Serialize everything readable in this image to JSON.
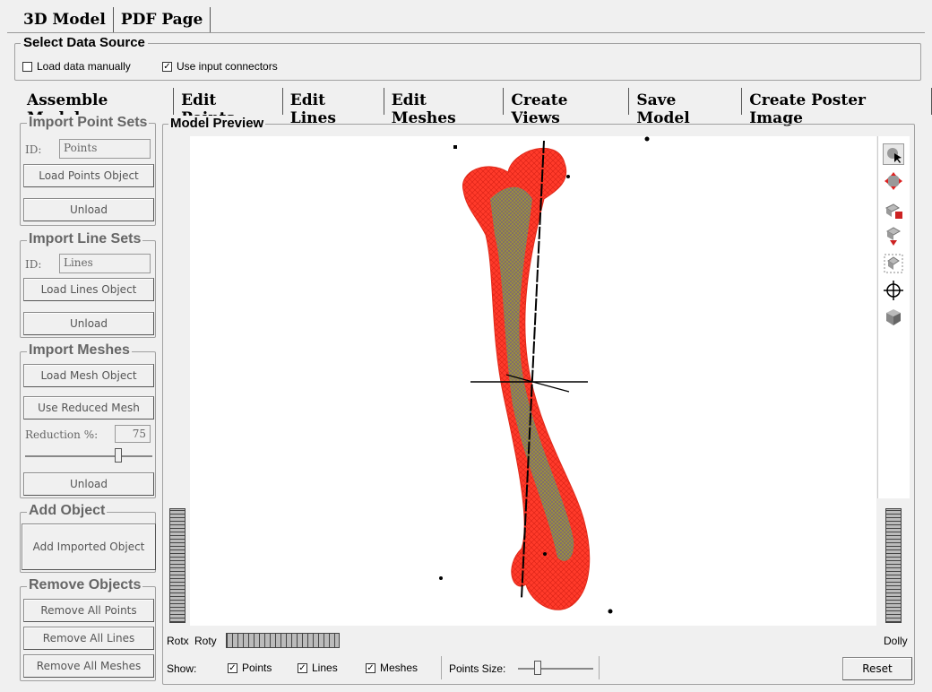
{
  "top_tabs": [
    "3D Model",
    "PDF Page"
  ],
  "data_source": {
    "title": "Select Data Source",
    "load_manually": "Load data manually",
    "use_connectors": "Use input connectors"
  },
  "sub_tabs": [
    "Assemble Model",
    "Edit Points",
    "Edit Lines",
    "Edit Meshes",
    "Create Views",
    "Save Model",
    "Create Poster Image"
  ],
  "import_points": {
    "title": "Import Point Sets",
    "id_label": "ID:",
    "id_value": "Points",
    "load": "Load Points Object",
    "unload": "Unload"
  },
  "import_lines": {
    "title": "Import Line Sets",
    "id_label": "ID:",
    "id_value": "Lines",
    "load": "Load Lines Object",
    "unload": "Unload"
  },
  "import_meshes": {
    "title": "Import Meshes",
    "load": "Load Mesh Object",
    "use_reduced": "Use Reduced Mesh",
    "reduction_label": "Reduction %:",
    "reduction_value": "75",
    "unload": "Unload"
  },
  "add_object": {
    "title": "Add Object",
    "button": "Add Imported Object"
  },
  "remove_objects": {
    "title": "Remove Objects",
    "points": "Remove All Points",
    "lines": "Remove All Lines",
    "meshes": "Remove All Meshes"
  },
  "preview": {
    "title": "Model Preview",
    "rotx": "Rotx",
    "roty": "Roty",
    "dolly": "Dolly",
    "show_label": "Show:",
    "show_points": "Points",
    "show_lines": "Lines",
    "show_meshes": "Meshes",
    "points_size": "Points Size:",
    "reset": "Reset"
  },
  "colors": {
    "mesh": "#ff3a2a",
    "mesh_inner": "#8ca33a",
    "viewport": "#ffffff"
  }
}
